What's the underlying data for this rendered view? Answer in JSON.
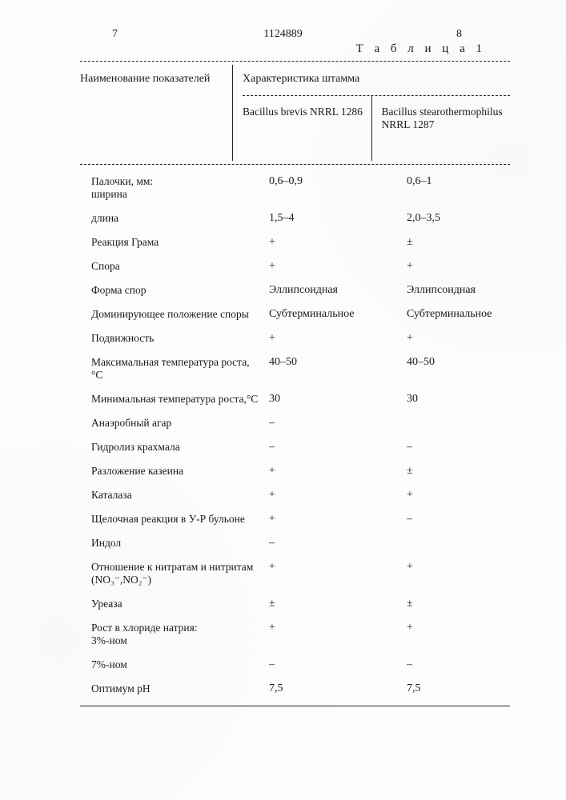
{
  "header": {
    "page_left": "7",
    "doc_num": "1124889",
    "page_right": "8",
    "table_label": "Т а б л и ц а  1"
  },
  "columns": {
    "label_header": "Наименование показателей",
    "group_header": "Характеристика штамма",
    "strain1": "Bacillus brevis NRRL 1286",
    "strain2": "Bacillus stearothermophilus NRRL 1287"
  },
  "rows": [
    {
      "name": "Палочки, мм:\n   ширина",
      "v1": "0,6–0,9",
      "v2": "0,6–1"
    },
    {
      "name": "   длина",
      "v1": "1,5–4",
      "v2": "2,0–3,5"
    },
    {
      "name": "Реакция Грама",
      "v1": "+",
      "v2": "±"
    },
    {
      "name": "Спора",
      "v1": "+",
      "v2": "+"
    },
    {
      "name": "Форма спор",
      "v1": "Эллипсоидная",
      "v2": "Эллипсоидная"
    },
    {
      "name": "Доминирующее положение споры",
      "v1": "Субтерминальное",
      "v2": "Субтерминальное"
    },
    {
      "name": "Подвижность",
      "v1": "+",
      "v2": "+"
    },
    {
      "name": "Максимальная температура роста,°С",
      "v1": "40–50",
      "v2": "40–50"
    },
    {
      "name": "Минимальная температура роста,°С",
      "v1": "30",
      "v2": "30"
    },
    {
      "name": "Анаэробный агар",
      "v1": "–",
      "v2": ""
    },
    {
      "name": "Гидролиз крахмала",
      "v1": "–",
      "v2": "–"
    },
    {
      "name": "Разложение казеина",
      "v1": "+",
      "v2": "±"
    },
    {
      "name": "Каталаза",
      "v1": "+",
      "v2": "+"
    },
    {
      "name": "Щелочная реакция в У-Р бульоне",
      "v1": "+",
      "v2": "–"
    },
    {
      "name": "Индол",
      "v1": "–",
      "v2": ""
    },
    {
      "name": "Отношение к нитратам и нитритам (NO₃⁻,NO₂⁻)",
      "v1": "+",
      "v2": "+"
    },
    {
      "name": "Уреаза",
      "v1": "±",
      "v2": "±"
    },
    {
      "name": "Рост  в хлориде натрия:\n   3%-ном",
      "v1": "+",
      "v2": "+"
    },
    {
      "name": "   7%-ном",
      "v1": "–",
      "v2": "–"
    },
    {
      "name": "Оптимум pH",
      "v1": "7,5",
      "v2": "7,5"
    }
  ]
}
